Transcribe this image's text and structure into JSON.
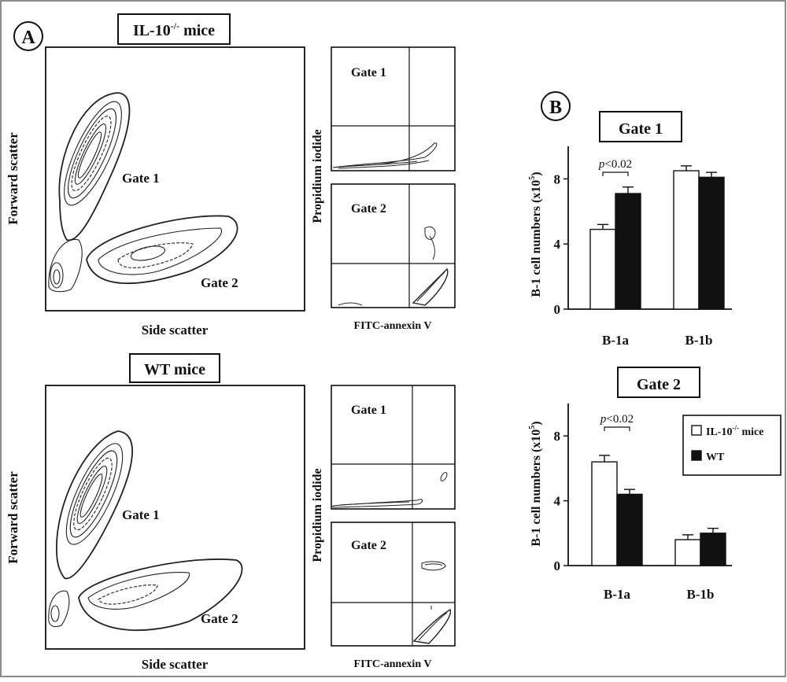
{
  "panel_a": {
    "letter": "A",
    "top": {
      "title_main": "IL-10",
      "title_sup": "-/-",
      "title_rest": " mice",
      "scatter_ylabel": "Forward scatter",
      "scatter_xlabel": "Side scatter",
      "gate1_label": "Gate 1",
      "gate2_label": "Gate 2",
      "flow_ylabel": "Propidium iodide",
      "flow_xlabel": "FITC-annexin V",
      "flow_gate1_label": "Gate 1",
      "flow_gate2_label": "Gate 2"
    },
    "bottom": {
      "title_main": "WT mice",
      "scatter_ylabel": "Forward scatter",
      "scatter_xlabel": "Side scatter",
      "gate1_label": "Gate 1",
      "gate2_label": "Gate 2",
      "flow_ylabel": "Propidium iodide",
      "flow_xlabel": "FITC-annexin V",
      "flow_gate1_label": "Gate 1",
      "flow_gate2_label": "Gate 2"
    }
  },
  "panel_b": {
    "letter": "B",
    "legend": {
      "il10_main": "IL-10",
      "il10_sup": "-/-",
      "il10_rest": " mice",
      "wt": "WT"
    }
  },
  "chart_data": [
    {
      "type": "bar",
      "title": "Gate 1",
      "ylabel_main": "B-1 cell numbers (x10",
      "ylabel_sup": "5",
      "ylabel_end": ")",
      "categories": [
        "B-1a",
        "B-1b"
      ],
      "series": [
        {
          "color": "#ffffff",
          "values": [
            4.9,
            8.5
          ],
          "errors": [
            0.3,
            0.3
          ]
        },
        {
          "color": "#111111",
          "values": [
            7.1,
            8.1
          ],
          "errors": [
            0.4,
            0.3
          ]
        }
      ],
      "yticks": [
        "0",
        "4",
        "8"
      ],
      "ylim": [
        0,
        10
      ],
      "annotation": {
        "p_label": "p",
        "rest": "<0.02",
        "category": "B-1a"
      }
    },
    {
      "type": "bar",
      "title": "Gate 2",
      "ylabel_main": "B-1 cell numbers (x10",
      "ylabel_sup": "5",
      "ylabel_end": ")",
      "categories": [
        "B-1a",
        "B-1b"
      ],
      "series": [
        {
          "color": "#ffffff",
          "values": [
            6.4,
            1.6
          ],
          "errors": [
            0.4,
            0.3
          ]
        },
        {
          "color": "#111111",
          "values": [
            4.4,
            2.0
          ],
          "errors": [
            0.3,
            0.3
          ]
        }
      ],
      "yticks": [
        "0",
        "4",
        "8"
      ],
      "ylim": [
        0,
        10
      ],
      "annotation": {
        "p_label": "p",
        "rest": "<0.02",
        "category": "B-1a"
      }
    }
  ]
}
